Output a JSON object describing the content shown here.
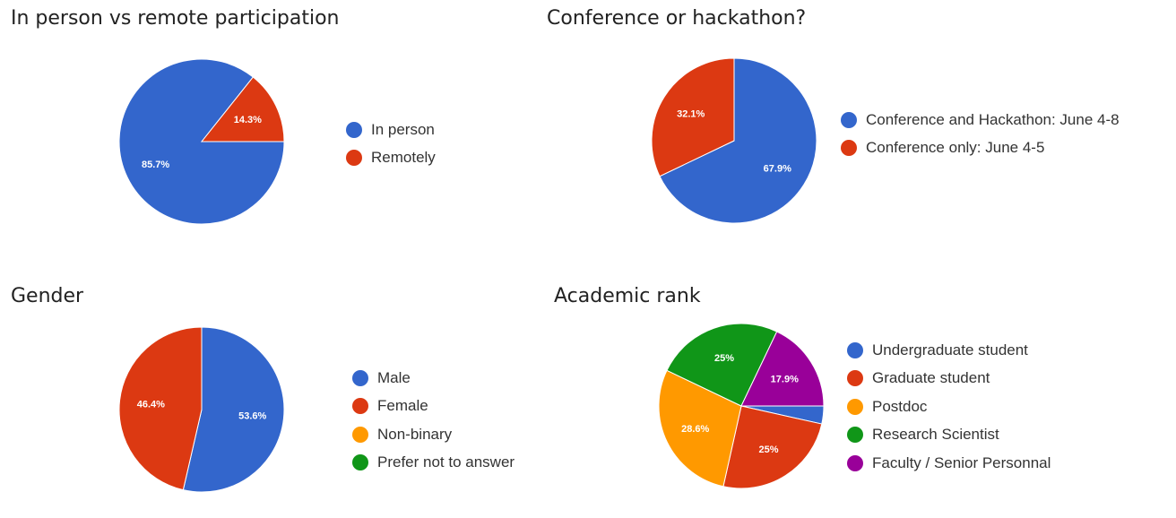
{
  "chart_data": [
    {
      "type": "pie",
      "title": "In person vs remote participation",
      "categories": [
        "In person",
        "Remotely"
      ],
      "values": [
        85.7,
        14.3
      ],
      "labels": [
        "85.7%",
        "14.3%"
      ],
      "colors": [
        "#3366cc",
        "#dc3912"
      ],
      "legend_position": "right"
    },
    {
      "type": "pie",
      "title": "Conference or hackathon?",
      "categories": [
        "Conference and Hackathon: June 4-8",
        "Conference only: June 4-5"
      ],
      "values": [
        67.9,
        32.1
      ],
      "labels": [
        "67.9%",
        "32.1%"
      ],
      "colors": [
        "#3366cc",
        "#dc3912"
      ],
      "legend_position": "right"
    },
    {
      "type": "pie",
      "title": "Gender",
      "categories": [
        "Male",
        "Female",
        "Non-binary",
        "Prefer not to answer"
      ],
      "values": [
        53.6,
        46.4,
        0,
        0
      ],
      "labels": [
        "53.6%",
        "46.4%",
        "",
        ""
      ],
      "colors": [
        "#3366cc",
        "#dc3912",
        "#ff9900",
        "#109618"
      ],
      "legend_position": "right"
    },
    {
      "type": "pie",
      "title": "Academic rank",
      "categories": [
        "Undergraduate student",
        "Graduate student",
        "Postdoc",
        "Research Scientist",
        "Faculty / Senior Personnal"
      ],
      "values": [
        3.5,
        25,
        28.6,
        25,
        17.9
      ],
      "labels": [
        "",
        "25%",
        "28.6%",
        "25%",
        "17.9%"
      ],
      "colors": [
        "#3366cc",
        "#dc3912",
        "#ff9900",
        "#109618",
        "#990099"
      ],
      "legend_position": "right"
    }
  ]
}
